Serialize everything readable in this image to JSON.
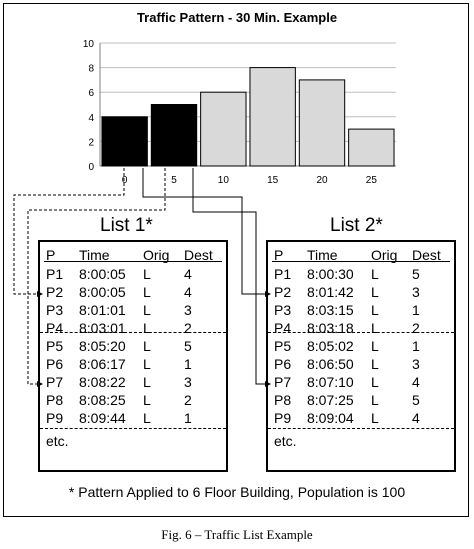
{
  "chart_data": {
    "type": "bar",
    "title": "Traffic Pattern - 30 Min. Example",
    "categories": [
      "0",
      "5",
      "10",
      "15",
      "20",
      "25"
    ],
    "values": [
      4,
      5,
      6,
      8,
      7,
      3
    ],
    "ylim": [
      0,
      10
    ],
    "yticks": [
      "0",
      "2",
      "4",
      "6",
      "8",
      "10"
    ],
    "grid": true,
    "colors": [
      "#000000",
      "#000000",
      "#d9d9d9",
      "#d9d9d9",
      "#d9d9d9",
      "#d9d9d9"
    ]
  },
  "list1": {
    "title": "List 1*",
    "headers": {
      "p": "P",
      "time": "Time",
      "orig": "Orig",
      "dest": "Dest"
    },
    "rows": [
      {
        "p": "P1",
        "time": "8:00:05",
        "orig": "L",
        "dest": "4"
      },
      {
        "p": "P2",
        "time": "8:00:05",
        "orig": "L",
        "dest": "4"
      },
      {
        "p": "P3",
        "time": "8:01:01",
        "orig": "L",
        "dest": "3"
      },
      {
        "p": "P4",
        "time": "8:03:01",
        "orig": "L",
        "dest": "2"
      },
      {
        "p": "P5",
        "time": "8:05:20",
        "orig": "L",
        "dest": "5"
      },
      {
        "p": "P6",
        "time": "8:06:17",
        "orig": "L",
        "dest": "1"
      },
      {
        "p": "P7",
        "time": "8:08:22",
        "orig": "L",
        "dest": "3"
      },
      {
        "p": "P8",
        "time": "8:08:25",
        "orig": "L",
        "dest": "2"
      },
      {
        "p": "P9",
        "time": "8:09:44",
        "orig": "L",
        "dest": "1"
      }
    ],
    "etc": "etc."
  },
  "list2": {
    "title": "List 2*",
    "headers": {
      "p": "P",
      "time": "Time",
      "orig": "Orig",
      "dest": "Dest"
    },
    "rows": [
      {
        "p": "P1",
        "time": "8:00:30",
        "orig": "L",
        "dest": "5"
      },
      {
        "p": "P2",
        "time": "8:01:42",
        "orig": "L",
        "dest": "3"
      },
      {
        "p": "P3",
        "time": "8:03:15",
        "orig": "L",
        "dest": "1"
      },
      {
        "p": "P4",
        "time": "8:03:18",
        "orig": "L",
        "dest": "2"
      },
      {
        "p": "P5",
        "time": "8:05:02",
        "orig": "L",
        "dest": "1"
      },
      {
        "p": "P6",
        "time": "8:06:50",
        "orig": "L",
        "dest": "3"
      },
      {
        "p": "P7",
        "time": "8:07:10",
        "orig": "L",
        "dest": "4"
      },
      {
        "p": "P8",
        "time": "8:07:25",
        "orig": "L",
        "dest": "5"
      },
      {
        "p": "P9",
        "time": "8:09:04",
        "orig": "L",
        "dest": "4"
      }
    ],
    "etc": "etc."
  },
  "footnote": "* Pattern Applied to 6 Floor Building, Population is 100",
  "caption": "Fig. 6 – Traffic List Example"
}
